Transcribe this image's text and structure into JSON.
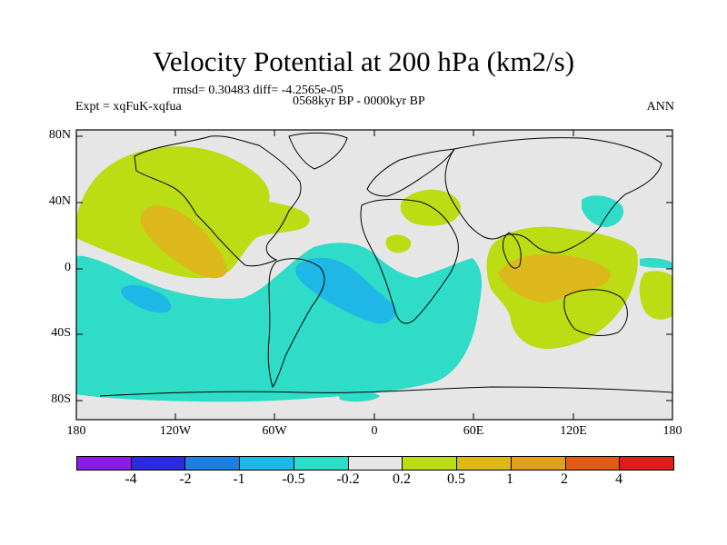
{
  "title": "Velocity Potential at 200 hPa (km2/s)",
  "stats": "rmsd= 0.30483 diff= -4.2565e-05",
  "period": "0568kyr BP - 0000kyr BP",
  "experiment": "Expt = xqFuK-xqfua",
  "season": "ANN",
  "lat_labels": [
    "80N",
    "40N",
    "0",
    "40S",
    "80S"
  ],
  "lon_labels": [
    "180",
    "120W",
    "60W",
    "0",
    "60E",
    "120E",
    "180"
  ],
  "colorbar": {
    "colors": [
      "#8a1ee0",
      "#2b2bdc",
      "#1d7fe0",
      "#1fb8e6",
      "#2fdcc8",
      "#e6e6e6",
      "#bcdc14",
      "#dcb81a",
      "#e0a01e",
      "#e05a1a",
      "#e01c1c"
    ],
    "labels": [
      "-4",
      "-2",
      "-1",
      "-0.5",
      "-0.2",
      "0.2",
      "0.5",
      "1",
      "2",
      "4"
    ]
  }
}
